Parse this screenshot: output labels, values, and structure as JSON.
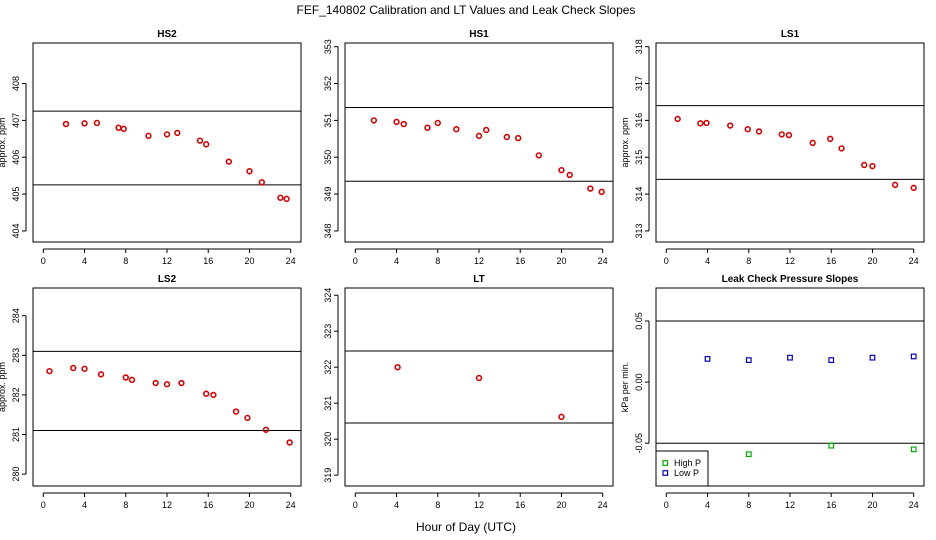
{
  "figure": {
    "title": "FEF_140802  Calibration and LT Values and Leak Check Slopes",
    "xlabel": "Hour of Day (UTC)"
  },
  "chart_data": [
    {
      "id": "hs2",
      "type": "scatter",
      "title": "HS2",
      "ylabel": "approx. ppm",
      "xlim": [
        -1,
        25
      ],
      "ylim": [
        403.7,
        409.1
      ],
      "xticks": [
        "0",
        "4",
        "8",
        "12",
        "16",
        "20",
        "24"
      ],
      "yticks": [
        "404",
        "405",
        "406",
        "407",
        "408"
      ],
      "hlines": [
        407.25,
        405.25
      ],
      "marker_color": "#dd0000",
      "x": [
        2.2,
        4.0,
        5.2,
        7.3,
        7.8,
        10.2,
        12.0,
        13.0,
        15.2,
        15.8,
        18.0,
        20.0,
        21.2,
        23.0,
        23.6
      ],
      "y": [
        406.9,
        406.92,
        406.93,
        406.8,
        406.77,
        406.58,
        406.62,
        406.66,
        406.45,
        406.35,
        405.88,
        405.62,
        405.32,
        404.9,
        404.87
      ]
    },
    {
      "id": "hs1",
      "type": "scatter",
      "title": "HS1",
      "ylabel": "",
      "xlim": [
        -1,
        25
      ],
      "ylim": [
        347.7,
        353.1
      ],
      "xticks": [
        "0",
        "4",
        "8",
        "12",
        "16",
        "20",
        "24"
      ],
      "yticks": [
        "348",
        "349",
        "350",
        "351",
        "352",
        "353"
      ],
      "hlines": [
        351.35,
        349.35
      ],
      "marker_color": "#dd0000",
      "x": [
        1.8,
        4.0,
        4.7,
        7.0,
        8.0,
        9.8,
        12.0,
        12.7,
        14.7,
        15.8,
        17.8,
        20.0,
        20.8,
        22.8,
        23.9
      ],
      "y": [
        351.0,
        350.96,
        350.9,
        350.8,
        350.93,
        350.76,
        350.58,
        350.74,
        350.55,
        350.52,
        350.05,
        349.65,
        349.52,
        349.15,
        349.06
      ]
    },
    {
      "id": "ls1",
      "type": "scatter",
      "title": "LS1",
      "ylabel": "approx. ppm",
      "xlim": [
        -1,
        25
      ],
      "ylim": [
        312.7,
        318.1
      ],
      "xticks": [
        "0",
        "4",
        "8",
        "12",
        "16",
        "20",
        "24"
      ],
      "yticks": [
        "313",
        "314",
        "315",
        "316",
        "317",
        "318"
      ],
      "hlines": [
        316.4,
        314.4
      ],
      "marker_color": "#dd0000",
      "x": [
        1.1,
        3.3,
        3.9,
        6.2,
        7.9,
        9.0,
        11.2,
        11.9,
        14.2,
        15.9,
        17.0,
        19.2,
        20.0,
        22.2,
        24.0
      ],
      "y": [
        316.04,
        315.92,
        315.93,
        315.86,
        315.76,
        315.7,
        315.62,
        315.6,
        315.39,
        315.5,
        315.24,
        314.79,
        314.76,
        314.25,
        314.17
      ]
    },
    {
      "id": "ls2",
      "type": "scatter",
      "title": "LS2",
      "ylabel": "approx. ppm",
      "xlim": [
        -1,
        25
      ],
      "ylim": [
        279.7,
        284.7
      ],
      "xticks": [
        "0",
        "4",
        "8",
        "12",
        "16",
        "20",
        "24"
      ],
      "yticks": [
        "280",
        "281",
        "282",
        "283",
        "284"
      ],
      "hlines": [
        283.1,
        281.1
      ],
      "marker_color": "#dd0000",
      "x": [
        0.6,
        2.9,
        4.0,
        5.6,
        8.0,
        8.6,
        10.9,
        12.0,
        13.4,
        15.8,
        16.5,
        18.7,
        19.8,
        21.6,
        23.9
      ],
      "y": [
        282.6,
        282.68,
        282.66,
        282.52,
        282.44,
        282.38,
        282.3,
        282.27,
        282.3,
        282.03,
        282.0,
        281.58,
        281.42,
        281.12,
        280.8
      ]
    },
    {
      "id": "lt",
      "type": "scatter",
      "title": "LT",
      "ylabel": "",
      "xlim": [
        -1,
        25
      ],
      "ylim": [
        318.7,
        324.2
      ],
      "xticks": [
        "0",
        "4",
        "8",
        "12",
        "16",
        "20",
        "24"
      ],
      "yticks": [
        "319",
        "320",
        "321",
        "322",
        "323",
        "324"
      ],
      "hlines": [
        322.45,
        320.45
      ],
      "marker_color": "#dd0000",
      "x": [
        4.1,
        12.0,
        20.0
      ],
      "y": [
        322.0,
        321.7,
        320.62
      ]
    },
    {
      "id": "leak",
      "type": "scatter",
      "title": "Leak Check Pressure Slopes",
      "ylabel": "kPa per min.",
      "xlim": [
        -1,
        25
      ],
      "ylim": [
        -0.085,
        0.077
      ],
      "xticks": [
        "0",
        "4",
        "8",
        "12",
        "16",
        "20",
        "24"
      ],
      "yticks": [
        "-0.05",
        "0.00",
        "0.05"
      ],
      "hlines": [
        0.05,
        -0.05
      ],
      "series": [
        {
          "name": "High P",
          "color": "#00aa00",
          "x": [
            8.0,
            16.0,
            24.0
          ],
          "y": [
            -0.059,
            -0.052,
            -0.055
          ]
        },
        {
          "name": "Low P",
          "color": "#0000cc",
          "x": [
            4.0,
            8.0,
            12.0,
            16.0,
            20.0,
            24.0
          ],
          "y": [
            0.019,
            0.018,
            0.02,
            0.018,
            0.02,
            0.021
          ]
        }
      ],
      "legend": {
        "position": "bottom-left",
        "entries": [
          "High P",
          "Low P"
        ]
      }
    }
  ]
}
